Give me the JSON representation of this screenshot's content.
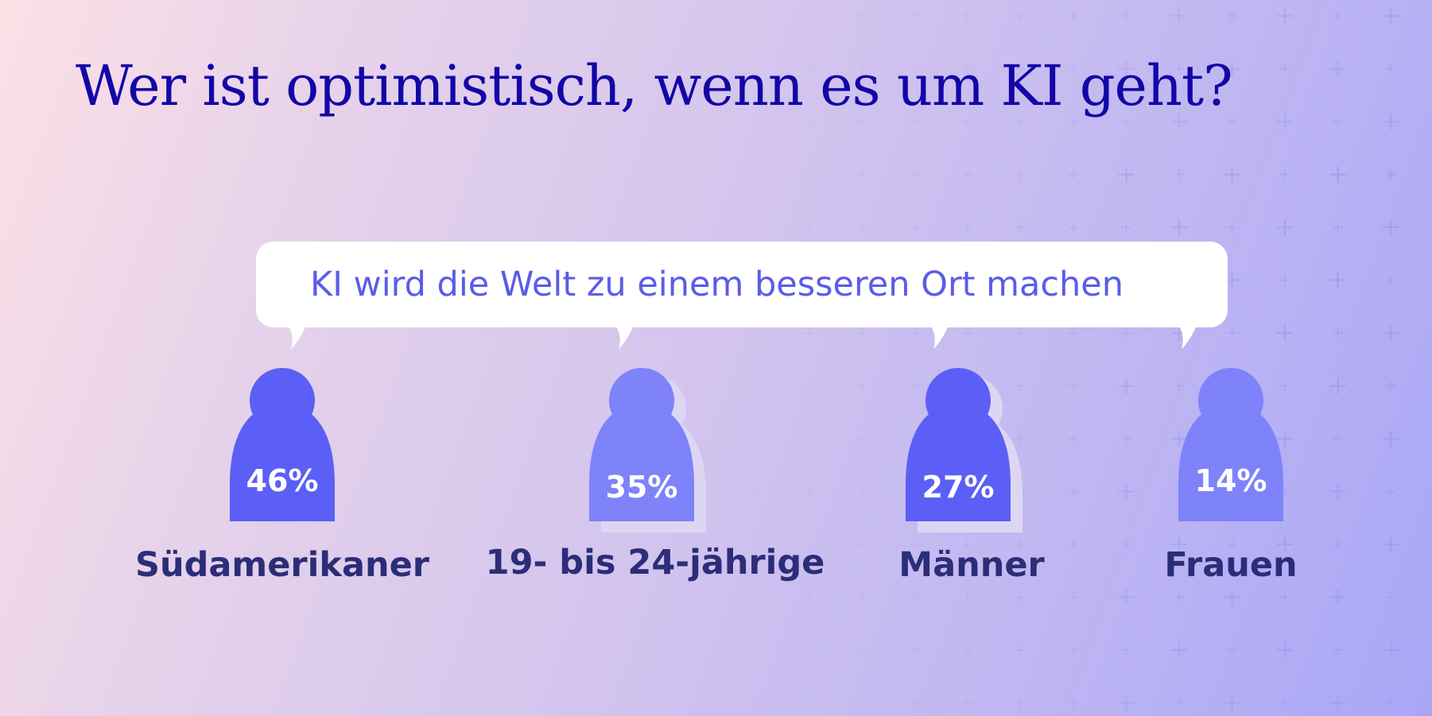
{
  "colors": {
    "title": "#1206a8",
    "bubble_text": "#5a5ce8",
    "figure_primary": "#5b5ff5",
    "figure_secondary": "#7e83fa",
    "figure_shadow": "#ddd6f3",
    "percent_text": "#ffffff",
    "label": "#2c2d78",
    "pattern_plus": "#9c9ef0"
  },
  "chart_data": {
    "type": "bar",
    "title": "Wer ist optimistisch, wenn es um KI geht?",
    "subtitle": "KI wird die Welt zu einem besseren Ort machen",
    "unit": "%",
    "categories": [
      "Südamerikaner",
      "19- bis 24-jährige",
      "Männer",
      "Frauen"
    ],
    "values": [
      46,
      35,
      27,
      14
    ],
    "value_labels": [
      "46%",
      "35%",
      "27%",
      "14%"
    ]
  }
}
